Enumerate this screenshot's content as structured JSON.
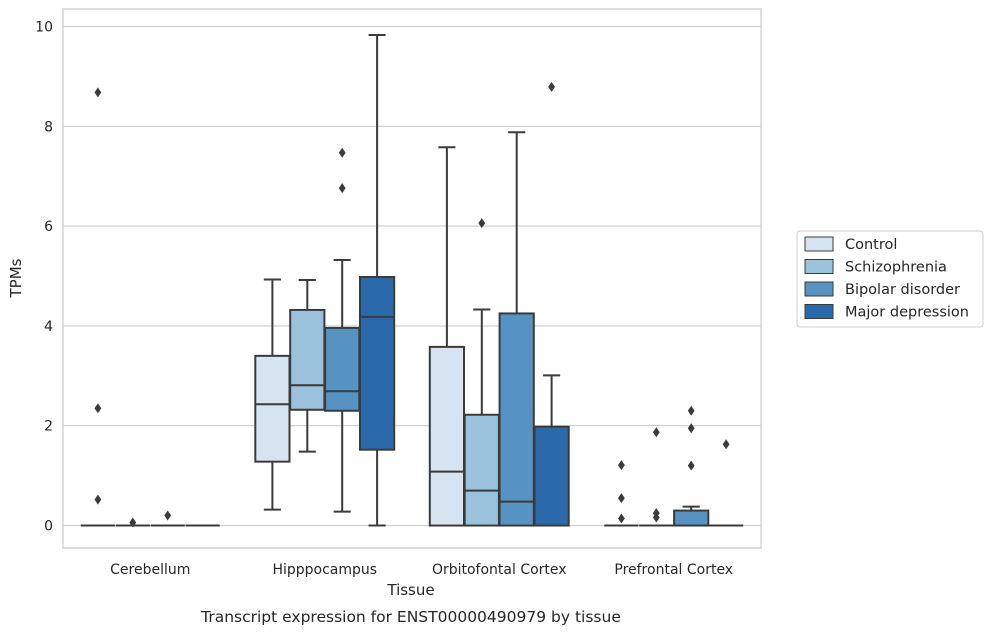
{
  "chart_data": {
    "type": "box",
    "title": "",
    "caption": "Transcript expression for ENST00000490979 by tissue",
    "xlabel": "Tissue",
    "ylabel": "TPMs",
    "ylim": [
      -0.45,
      10.35
    ],
    "yticks": [
      0,
      2,
      4,
      6,
      8,
      10
    ],
    "grid": "horizontal",
    "legend_position": "right",
    "categories": [
      "Cerebellum",
      "Hipppocampus",
      "Orbitofontal Cortex",
      "Prefrontal Cortex"
    ],
    "series": [
      {
        "name": "Control",
        "color": "#d6e4f1",
        "boxes": [
          {
            "q1": 0,
            "median": 0,
            "q3": 0,
            "whislo": 0,
            "whishi": 0,
            "fliers": [
              8.68,
              2.35,
              0.52
            ]
          },
          {
            "q1": 1.28,
            "median": 2.43,
            "q3": 3.4,
            "whislo": 0.32,
            "whishi": 4.93,
            "fliers": []
          },
          {
            "q1": 0,
            "median": 1.08,
            "q3": 3.58,
            "whislo": 0,
            "whishi": 7.58,
            "fliers": []
          },
          {
            "q1": 0,
            "median": 0,
            "q3": 0,
            "whislo": 0,
            "whishi": 0,
            "fliers": [
              1.21,
              0.55,
              0.14
            ]
          }
        ]
      },
      {
        "name": "Schizophrenia",
        "color": "#9ac2dc",
        "boxes": [
          {
            "q1": 0,
            "median": 0,
            "q3": 0,
            "whislo": 0,
            "whishi": 0,
            "fliers": [
              0.06
            ]
          },
          {
            "q1": 2.32,
            "median": 2.81,
            "q3": 4.32,
            "whislo": 1.48,
            "whishi": 4.92,
            "fliers": []
          },
          {
            "q1": 0,
            "median": 0.7,
            "q3": 2.22,
            "whislo": 0,
            "whishi": 4.33,
            "fliers": [
              6.06
            ]
          },
          {
            "q1": 0,
            "median": 0,
            "q3": 0,
            "whislo": 0,
            "whishi": 0,
            "fliers": [
              1.87,
              0.25,
              0.16
            ]
          }
        ]
      },
      {
        "name": "Bipolar disorder",
        "color": "#5693c2",
        "boxes": [
          {
            "q1": 0,
            "median": 0,
            "q3": 0,
            "whislo": 0,
            "whishi": 0,
            "fliers": [
              0.2
            ]
          },
          {
            "q1": 2.3,
            "median": 2.69,
            "q3": 3.96,
            "whislo": 0.28,
            "whishi": 5.32,
            "fliers": [
              7.47,
              6.76
            ]
          },
          {
            "q1": 0,
            "median": 0.48,
            "q3": 4.25,
            "whislo": 0,
            "whishi": 7.88,
            "fliers": []
          },
          {
            "q1": 0,
            "median": 0,
            "q3": 0.3,
            "whislo": 0,
            "whishi": 0.38,
            "fliers": [
              2.3,
              1.95,
              1.2
            ]
          }
        ]
      },
      {
        "name": "Major depression",
        "color": "#2b6aaa",
        "boxes": [
          {
            "q1": 0,
            "median": 0,
            "q3": 0,
            "whislo": 0,
            "whishi": 0,
            "fliers": []
          },
          {
            "q1": 1.52,
            "median": 4.18,
            "q3": 4.98,
            "whislo": 0,
            "whishi": 9.83,
            "fliers": []
          },
          {
            "q1": 0,
            "median": 0,
            "q3": 1.98,
            "whislo": 0,
            "whishi": 3.01,
            "fliers": [
              8.79
            ]
          },
          {
            "q1": 0,
            "median": 0,
            "q3": 0,
            "whislo": 0,
            "whishi": 0,
            "fliers": [
              1.63
            ]
          }
        ]
      }
    ]
  }
}
